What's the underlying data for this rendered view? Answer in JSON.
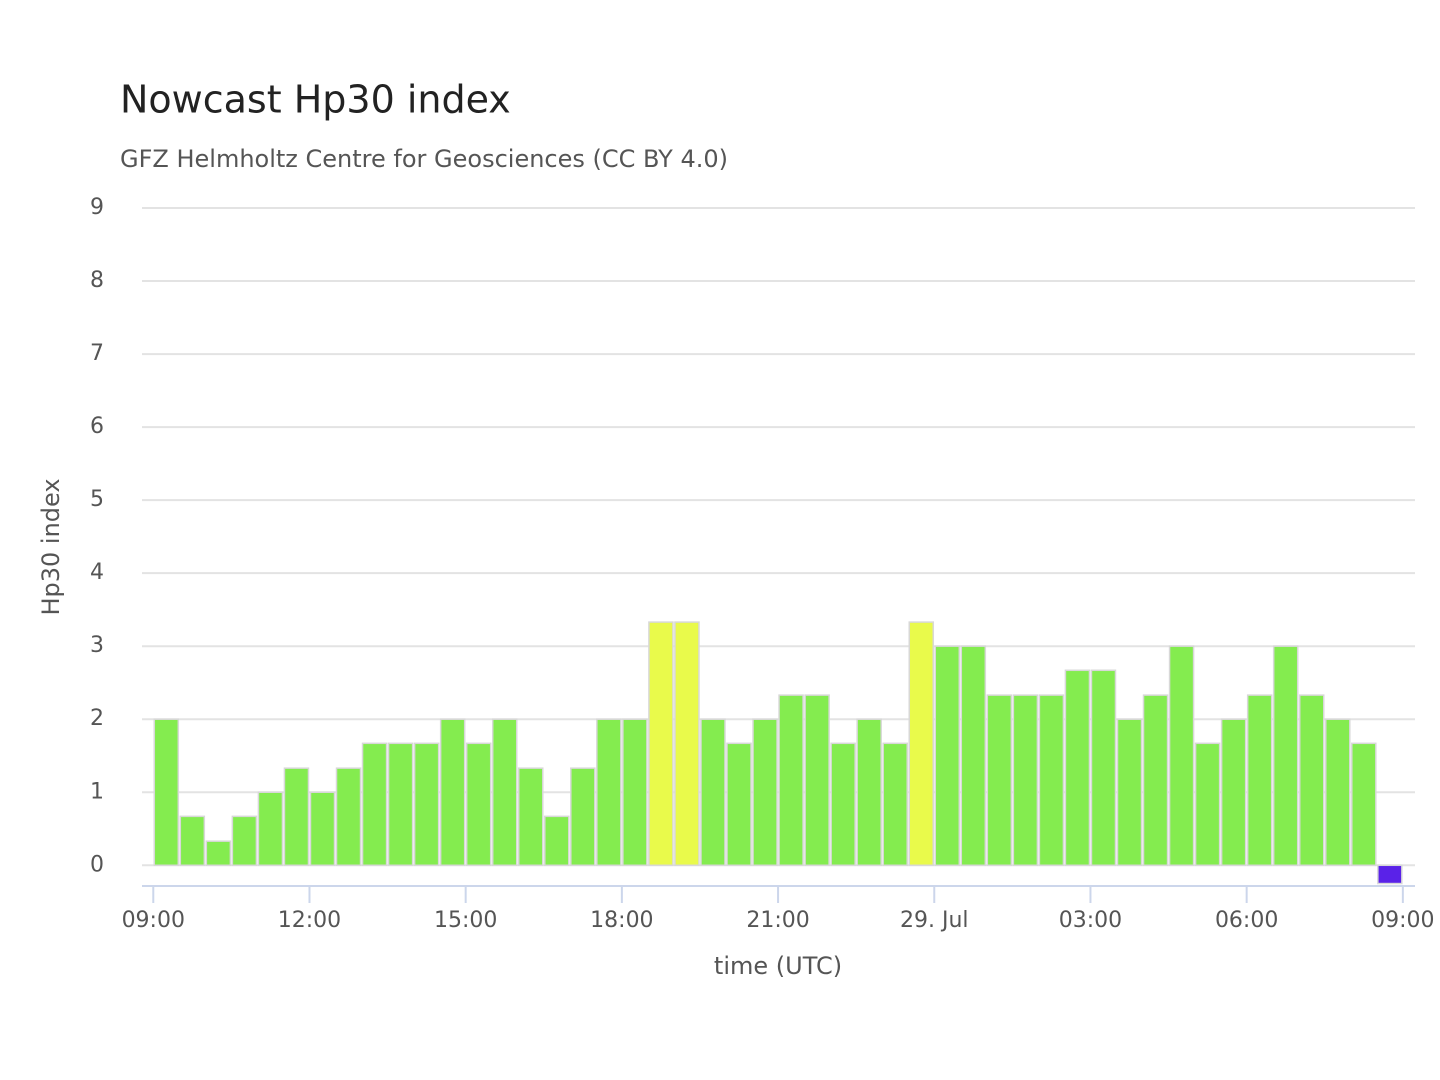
{
  "chart_data": {
    "type": "bar",
    "title": "Nowcast Hp30 index",
    "subtitle": "GFZ Helmholtz Centre for Geosciences (CC BY 4.0)",
    "y_label": "Hp30 index",
    "x_label": "time (UTC)",
    "x": [
      "28. Jul 09:00",
      "28. Jul 09:30",
      "28. Jul 10:00",
      "28. Jul 10:30",
      "28. Jul 11:00",
      "28. Jul 11:30",
      "28. Jul 12:00",
      "28. Jul 12:30",
      "28. Jul 13:00",
      "28. Jul 13:30",
      "28. Jul 14:00",
      "28. Jul 14:30",
      "28. Jul 15:00",
      "28. Jul 15:30",
      "28. Jul 16:00",
      "28. Jul 16:30",
      "28. Jul 17:00",
      "28. Jul 17:30",
      "28. Jul 18:00",
      "28. Jul 18:30",
      "28. Jul 19:00",
      "28. Jul 19:30",
      "28. Jul 20:00",
      "28. Jul 20:30",
      "28. Jul 21:00",
      "28. Jul 21:30",
      "28. Jul 22:00",
      "28. Jul 22:30",
      "28. Jul 23:00",
      "28. Jul 23:30",
      "29. Jul 00:00",
      "29. Jul 00:30",
      "29. Jul 01:00",
      "29. Jul 01:30",
      "29. Jul 02:00",
      "29. Jul 02:30",
      "29. Jul 03:00",
      "29. Jul 03:30",
      "29. Jul 04:00",
      "29. Jul 04:30",
      "29. Jul 05:00",
      "29. Jul 05:30",
      "29. Jul 06:00",
      "29. Jul 06:30",
      "29. Jul 07:00",
      "29. Jul 07:30",
      "29. Jul 08:00",
      "29. Jul 08:30"
    ],
    "values": [
      2,
      0.67,
      0.33,
      0.67,
      1,
      1.33,
      1,
      1.33,
      1.67,
      1.67,
      1.67,
      2,
      1.67,
      2,
      1.33,
      0.67,
      1.33,
      2,
      2,
      3.33,
      3.33,
      2,
      1.67,
      2,
      2.33,
      2.33,
      1.67,
      2,
      1.67,
      3.33,
      3,
      3,
      2.33,
      2.33,
      2.33,
      2.67,
      2.67,
      2,
      2.33,
      3,
      1.67,
      2,
      2.33,
      3,
      2.33,
      2,
      1.67,
      -0.25
    ],
    "colors": [
      "#84ec4f",
      "#84ec4f",
      "#84ec4f",
      "#84ec4f",
      "#84ec4f",
      "#84ec4f",
      "#84ec4f",
      "#84ec4f",
      "#84ec4f",
      "#84ec4f",
      "#84ec4f",
      "#84ec4f",
      "#84ec4f",
      "#84ec4f",
      "#84ec4f",
      "#84ec4f",
      "#84ec4f",
      "#84ec4f",
      "#84ec4f",
      "#e9fa4b",
      "#e9fa4b",
      "#84ec4f",
      "#84ec4f",
      "#84ec4f",
      "#84ec4f",
      "#84ec4f",
      "#84ec4f",
      "#84ec4f",
      "#84ec4f",
      "#e9fa4b",
      "#84ec4f",
      "#84ec4f",
      "#84ec4f",
      "#84ec4f",
      "#84ec4f",
      "#84ec4f",
      "#84ec4f",
      "#84ec4f",
      "#84ec4f",
      "#84ec4f",
      "#84ec4f",
      "#84ec4f",
      "#84ec4f",
      "#84ec4f",
      "#84ec4f",
      "#84ec4f",
      "#84ec4f",
      "#5a22e8"
    ],
    "xlim": [
      "28. Jul 08:47",
      "29. Jul 09:14"
    ],
    "xticks": [
      {
        "value": "28. Jul 09:00",
        "label": "09:00"
      },
      {
        "value": "28. Jul 12:00",
        "label": "12:00"
      },
      {
        "value": "28. Jul 15:00",
        "label": "15:00"
      },
      {
        "value": "28. Jul 18:00",
        "label": "18:00"
      },
      {
        "value": "28. Jul 21:00",
        "label": "21:00"
      },
      {
        "value": "29. Jul 00:00",
        "label": "29. Jul"
      },
      {
        "value": "29. Jul 03:00",
        "label": "03:00"
      },
      {
        "value": "29. Jul 06:00",
        "label": "06:00"
      },
      {
        "value": "29. Jul 09:00",
        "label": "09:00"
      }
    ],
    "ylim": [
      -0.27,
      9
    ],
    "yticks": [
      0,
      1,
      2,
      3,
      4,
      5,
      6,
      7,
      8,
      9
    ],
    "grid": true
  }
}
